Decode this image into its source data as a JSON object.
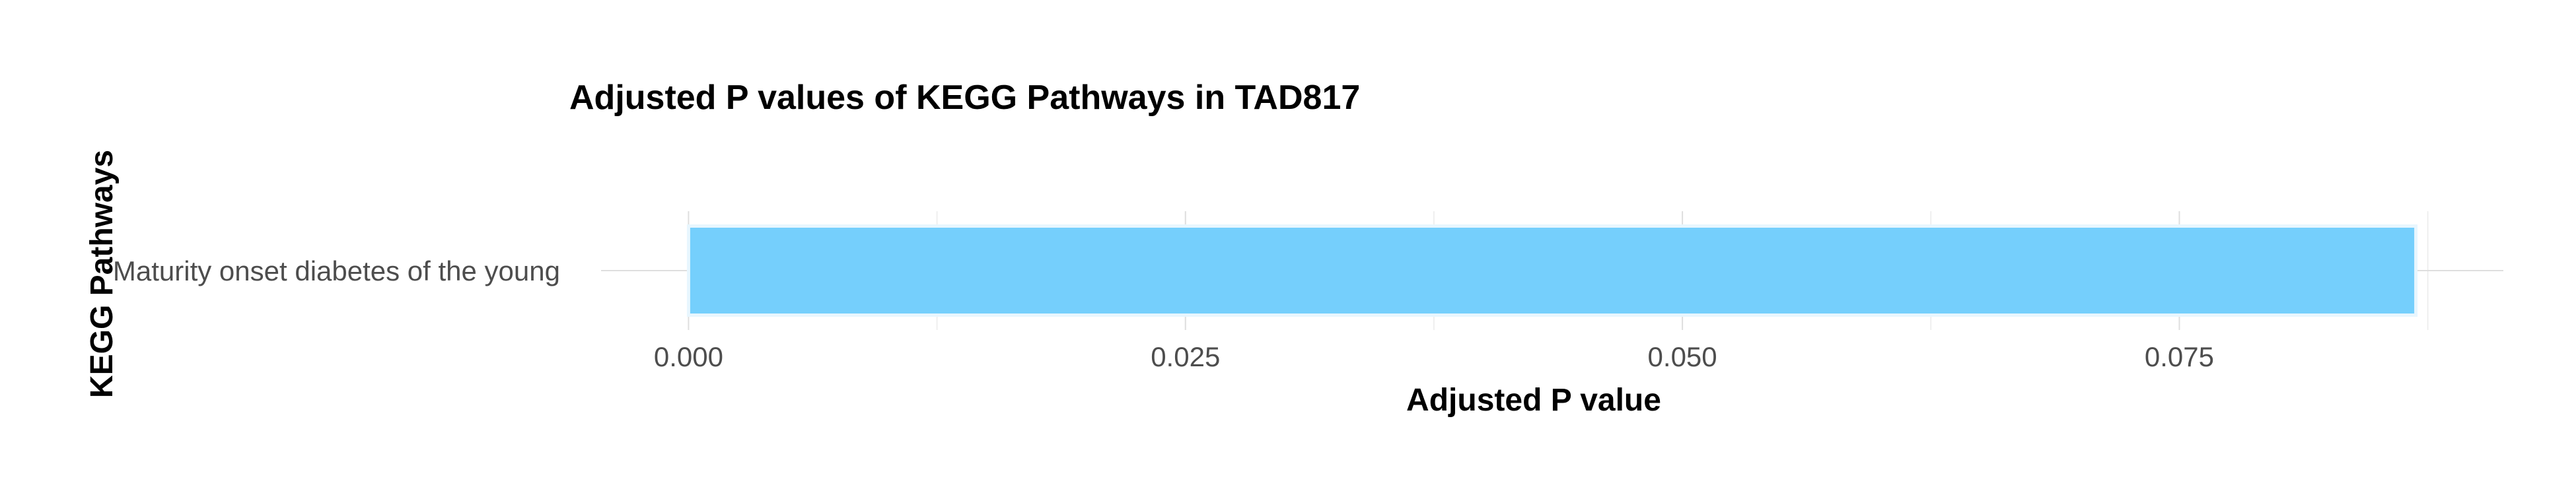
{
  "chart_data": {
    "type": "bar",
    "orientation": "horizontal",
    "title": "Adjusted P values of KEGG Pathways in TAD817",
    "xlabel": "Adjusted P value",
    "ylabel": "KEGG Pathways",
    "categories": [
      "Maturity onset diabetes of the young"
    ],
    "values": [
      0.0869
    ],
    "xticks": [
      0.0,
      0.025,
      0.05,
      0.075
    ],
    "xtick_labels": [
      "0.000",
      "0.025",
      "0.050",
      "0.075"
    ],
    "xlim": [
      -0.0044,
      0.0913
    ],
    "grid": true,
    "legend": "none",
    "bar_color": "#75CFFC",
    "bar_edge_color": "#E8F6FE"
  }
}
